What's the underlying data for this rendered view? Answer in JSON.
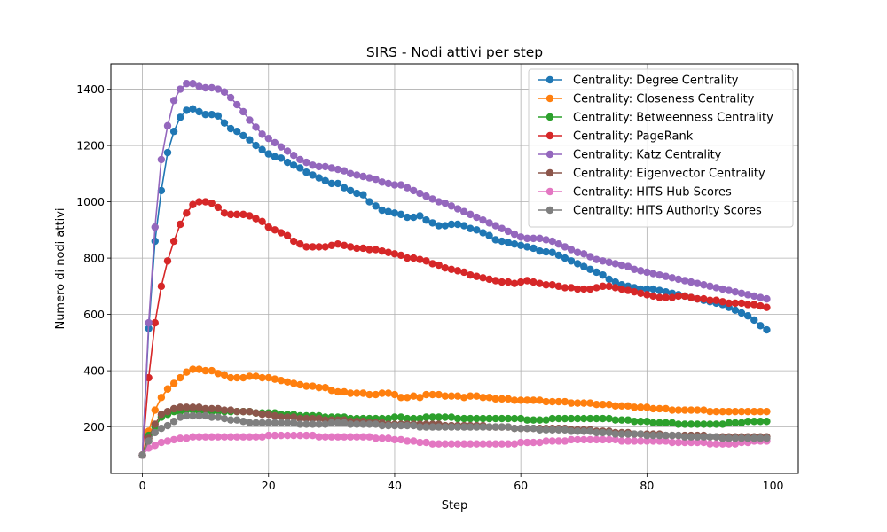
{
  "chart_data": {
    "type": "line",
    "title": "SIRS - Nodi attivi per step",
    "xlabel": "Step",
    "ylabel": "Numero di nodi attivi",
    "xlim": [
      -5,
      104
    ],
    "ylim": [
      35,
      1490
    ],
    "xticks": [
      0,
      20,
      40,
      60,
      80,
      100
    ],
    "yticks": [
      200,
      400,
      600,
      800,
      1000,
      1200,
      1400
    ],
    "grid": true,
    "legend_position": "upper-right",
    "x": [
      0,
      1,
      2,
      3,
      4,
      5,
      6,
      7,
      8,
      9,
      10,
      11,
      12,
      13,
      14,
      15,
      16,
      17,
      18,
      19,
      20,
      21,
      22,
      23,
      24,
      25,
      26,
      27,
      28,
      29,
      30,
      31,
      32,
      33,
      34,
      35,
      36,
      37,
      38,
      39,
      40,
      41,
      42,
      43,
      44,
      45,
      46,
      47,
      48,
      49,
      50,
      51,
      52,
      53,
      54,
      55,
      56,
      57,
      58,
      59,
      60,
      61,
      62,
      63,
      64,
      65,
      66,
      67,
      68,
      69,
      70,
      71,
      72,
      73,
      74,
      75,
      76,
      77,
      78,
      79,
      80,
      81,
      82,
      83,
      84,
      85,
      86,
      87,
      88,
      89,
      90,
      91,
      92,
      93,
      94,
      95,
      96,
      97,
      98,
      99
    ],
    "series": [
      {
        "name": "Centrality: Degree Centrality",
        "color": "#1f77b4",
        "values": [
          100,
          550,
          860,
          1040,
          1175,
          1250,
          1300,
          1325,
          1330,
          1320,
          1310,
          1310,
          1305,
          1280,
          1260,
          1250,
          1235,
          1220,
          1200,
          1185,
          1170,
          1160,
          1155,
          1140,
          1130,
          1120,
          1105,
          1095,
          1085,
          1075,
          1065,
          1065,
          1050,
          1040,
          1030,
          1025,
          1000,
          985,
          970,
          965,
          960,
          955,
          945,
          945,
          950,
          935,
          925,
          915,
          915,
          920,
          920,
          915,
          905,
          900,
          890,
          880,
          865,
          860,
          855,
          850,
          845,
          840,
          835,
          825,
          822,
          820,
          810,
          800,
          790,
          780,
          770,
          760,
          750,
          740,
          725,
          715,
          705,
          700,
          695,
          690,
          690,
          690,
          685,
          680,
          675,
          670,
          665,
          660,
          655,
          650,
          645,
          640,
          635,
          625,
          615,
          605,
          595,
          580,
          560,
          545
        ]
      },
      {
        "name": "Centrality: Closeness Centrality",
        "color": "#ff7f0e",
        "values": [
          100,
          185,
          260,
          305,
          335,
          355,
          375,
          395,
          405,
          405,
          400,
          400,
          390,
          385,
          375,
          375,
          375,
          380,
          380,
          375,
          375,
          370,
          365,
          360,
          355,
          350,
          345,
          345,
          340,
          340,
          330,
          325,
          325,
          320,
          320,
          320,
          315,
          315,
          320,
          320,
          315,
          305,
          305,
          310,
          305,
          315,
          315,
          315,
          310,
          310,
          310,
          305,
          310,
          310,
          305,
          305,
          300,
          300,
          300,
          295,
          295,
          295,
          295,
          295,
          290,
          290,
          290,
          290,
          285,
          285,
          285,
          285,
          280,
          280,
          280,
          275,
          275,
          275,
          270,
          270,
          270,
          265,
          265,
          265,
          260,
          260,
          260,
          260,
          260,
          260,
          255,
          255,
          255,
          255,
          255,
          255,
          255,
          255,
          255,
          255
        ]
      },
      {
        "name": "Centrality: Betweenness Centrality",
        "color": "#2ca02c",
        "values": [
          100,
          170,
          200,
          235,
          245,
          255,
          255,
          260,
          260,
          255,
          255,
          255,
          255,
          255,
          255,
          255,
          255,
          255,
          250,
          250,
          250,
          250,
          245,
          245,
          245,
          240,
          240,
          240,
          240,
          235,
          235,
          235,
          235,
          230,
          230,
          230,
          230,
          230,
          230,
          230,
          235,
          235,
          230,
          230,
          230,
          235,
          235,
          235,
          235,
          235,
          230,
          230,
          230,
          230,
          230,
          230,
          230,
          230,
          230,
          230,
          230,
          225,
          225,
          225,
          225,
          230,
          230,
          230,
          230,
          230,
          230,
          230,
          230,
          230,
          230,
          225,
          225,
          225,
          220,
          220,
          220,
          215,
          215,
          215,
          215,
          210,
          210,
          210,
          210,
          210,
          210,
          210,
          210,
          215,
          215,
          215,
          220,
          220,
          220,
          220
        ]
      },
      {
        "name": "Centrality: PageRank",
        "color": "#d62728",
        "values": [
          100,
          375,
          570,
          700,
          790,
          860,
          920,
          960,
          990,
          1000,
          1000,
          995,
          980,
          960,
          955,
          955,
          955,
          950,
          940,
          930,
          910,
          900,
          890,
          880,
          860,
          850,
          840,
          840,
          840,
          840,
          845,
          850,
          845,
          840,
          835,
          835,
          830,
          830,
          825,
          820,
          815,
          810,
          800,
          800,
          795,
          790,
          780,
          775,
          765,
          760,
          755,
          750,
          740,
          735,
          730,
          725,
          720,
          715,
          715,
          710,
          715,
          720,
          715,
          710,
          705,
          705,
          700,
          695,
          695,
          690,
          690,
          690,
          695,
          700,
          700,
          695,
          690,
          685,
          680,
          675,
          670,
          665,
          660,
          660,
          660,
          665,
          665,
          660,
          655,
          655,
          650,
          650,
          645,
          640,
          640,
          640,
          635,
          635,
          630,
          625
        ]
      },
      {
        "name": "Centrality: Katz Centrality",
        "color": "#9467bd",
        "values": [
          100,
          570,
          910,
          1150,
          1270,
          1360,
          1400,
          1420,
          1420,
          1410,
          1405,
          1405,
          1400,
          1390,
          1370,
          1345,
          1320,
          1290,
          1265,
          1240,
          1225,
          1210,
          1195,
          1180,
          1165,
          1150,
          1140,
          1130,
          1125,
          1125,
          1120,
          1115,
          1110,
          1100,
          1095,
          1090,
          1085,
          1080,
          1070,
          1065,
          1060,
          1060,
          1050,
          1040,
          1030,
          1020,
          1010,
          1000,
          995,
          985,
          975,
          965,
          955,
          945,
          935,
          925,
          915,
          905,
          895,
          885,
          875,
          870,
          870,
          870,
          865,
          860,
          850,
          840,
          830,
          820,
          815,
          805,
          795,
          790,
          785,
          780,
          775,
          770,
          760,
          755,
          750,
          745,
          740,
          735,
          730,
          725,
          720,
          715,
          710,
          705,
          700,
          695,
          690,
          685,
          680,
          675,
          670,
          665,
          660,
          655
        ]
      },
      {
        "name": "Centrality: Eigenvector Centrality",
        "color": "#8c564b",
        "values": [
          100,
          160,
          210,
          245,
          255,
          265,
          270,
          270,
          270,
          270,
          265,
          265,
          265,
          260,
          260,
          255,
          255,
          255,
          250,
          245,
          245,
          240,
          235,
          235,
          235,
          230,
          230,
          230,
          230,
          225,
          225,
          225,
          225,
          220,
          220,
          220,
          215,
          215,
          215,
          210,
          210,
          210,
          210,
          210,
          210,
          210,
          210,
          210,
          205,
          205,
          205,
          205,
          205,
          205,
          205,
          200,
          200,
          200,
          200,
          195,
          195,
          195,
          195,
          195,
          195,
          195,
          195,
          195,
          190,
          190,
          190,
          190,
          185,
          185,
          185,
          180,
          180,
          180,
          175,
          175,
          175,
          175,
          175,
          170,
          170,
          170,
          170,
          170,
          170,
          170,
          165,
          165,
          165,
          165,
          165,
          165,
          165,
          165,
          165,
          165
        ]
      },
      {
        "name": "Centrality: HITS Hub Scores",
        "color": "#e377c2",
        "values": [
          100,
          125,
          135,
          145,
          150,
          155,
          160,
          160,
          165,
          165,
          165,
          165,
          165,
          165,
          165,
          165,
          165,
          165,
          165,
          165,
          170,
          170,
          170,
          170,
          170,
          170,
          170,
          170,
          165,
          165,
          165,
          165,
          165,
          165,
          165,
          165,
          165,
          160,
          160,
          160,
          155,
          155,
          150,
          150,
          145,
          145,
          140,
          140,
          140,
          140,
          140,
          140,
          140,
          140,
          140,
          140,
          140,
          140,
          140,
          140,
          145,
          145,
          145,
          145,
          150,
          150,
          150,
          150,
          155,
          155,
          155,
          155,
          155,
          155,
          155,
          155,
          150,
          150,
          150,
          150,
          150,
          150,
          150,
          150,
          145,
          145,
          145,
          145,
          145,
          145,
          140,
          140,
          140,
          140,
          140,
          145,
          145,
          150,
          150,
          150
        ]
      },
      {
        "name": "Centrality: HITS Authority Scores",
        "color": "#7f7f7f",
        "values": [
          100,
          150,
          180,
          195,
          205,
          220,
          235,
          240,
          240,
          240,
          240,
          235,
          235,
          230,
          225,
          225,
          220,
          215,
          215,
          215,
          215,
          215,
          215,
          215,
          215,
          210,
          210,
          210,
          210,
          210,
          215,
          215,
          215,
          210,
          210,
          210,
          210,
          210,
          205,
          205,
          205,
          205,
          205,
          205,
          200,
          200,
          200,
          200,
          200,
          200,
          200,
          200,
          200,
          200,
          200,
          200,
          200,
          200,
          200,
          195,
          195,
          195,
          195,
          190,
          190,
          190,
          190,
          190,
          185,
          185,
          185,
          185,
          180,
          180,
          180,
          175,
          175,
          175,
          175,
          175,
          170,
          170,
          170,
          170,
          170,
          170,
          165,
          165,
          165,
          165,
          165,
          165,
          160,
          160,
          160,
          160,
          160,
          160,
          160,
          160
        ]
      }
    ]
  }
}
